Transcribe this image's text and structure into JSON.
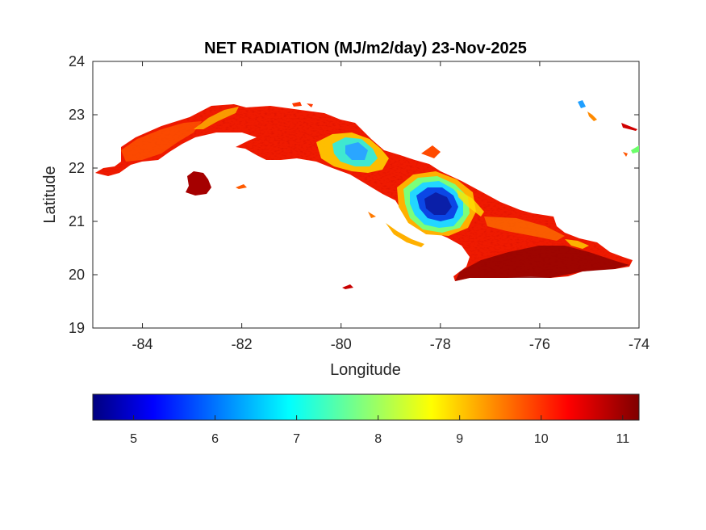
{
  "chart_data": {
    "type": "heatmap",
    "title": "NET RADIATION (MJ/m2/day) 23-Nov-2025",
    "xlabel": "Longitude",
    "ylabel": "Latitude",
    "xlim": [
      -85,
      -74
    ],
    "ylim": [
      19,
      24
    ],
    "xticks": [
      "-84",
      "-82",
      "-80",
      "-78",
      "-76",
      "-74"
    ],
    "yticks": [
      "19",
      "20",
      "21",
      "22",
      "23",
      "24"
    ],
    "colorbar": {
      "colormap": "jet",
      "range": [
        4.5,
        11.2
      ],
      "ticks": [
        "5",
        "6",
        "7",
        "8",
        "9",
        "10",
        "11"
      ],
      "orientation": "horizontal",
      "placement": "below"
    },
    "regions": [
      {
        "region": "western Cuba",
        "lon_range": [
          -84.9,
          -81.5
        ],
        "approx_value": 10.3
      },
      {
        "region": "Isla de la Juventud",
        "lon_range": [
          -83.2,
          -82.5
        ],
        "approx_value": 11.0
      },
      {
        "region": "central-north Cuba",
        "lon_range": [
          -82,
          -79.5
        ],
        "approx_value": 10.5
      },
      {
        "region": "north-central cool zone",
        "lon_range": [
          -80.1,
          -79.2
        ],
        "approx_value": 7.2
      },
      {
        "region": "central-east cool zone",
        "lon_range": [
          -78.6,
          -77.4
        ],
        "approx_value": 5.3
      },
      {
        "region": "eastern Cuba",
        "lon_range": [
          -77.5,
          -74.2
        ],
        "approx_value": 10.4
      }
    ],
    "grid": false,
    "legend": "none"
  }
}
